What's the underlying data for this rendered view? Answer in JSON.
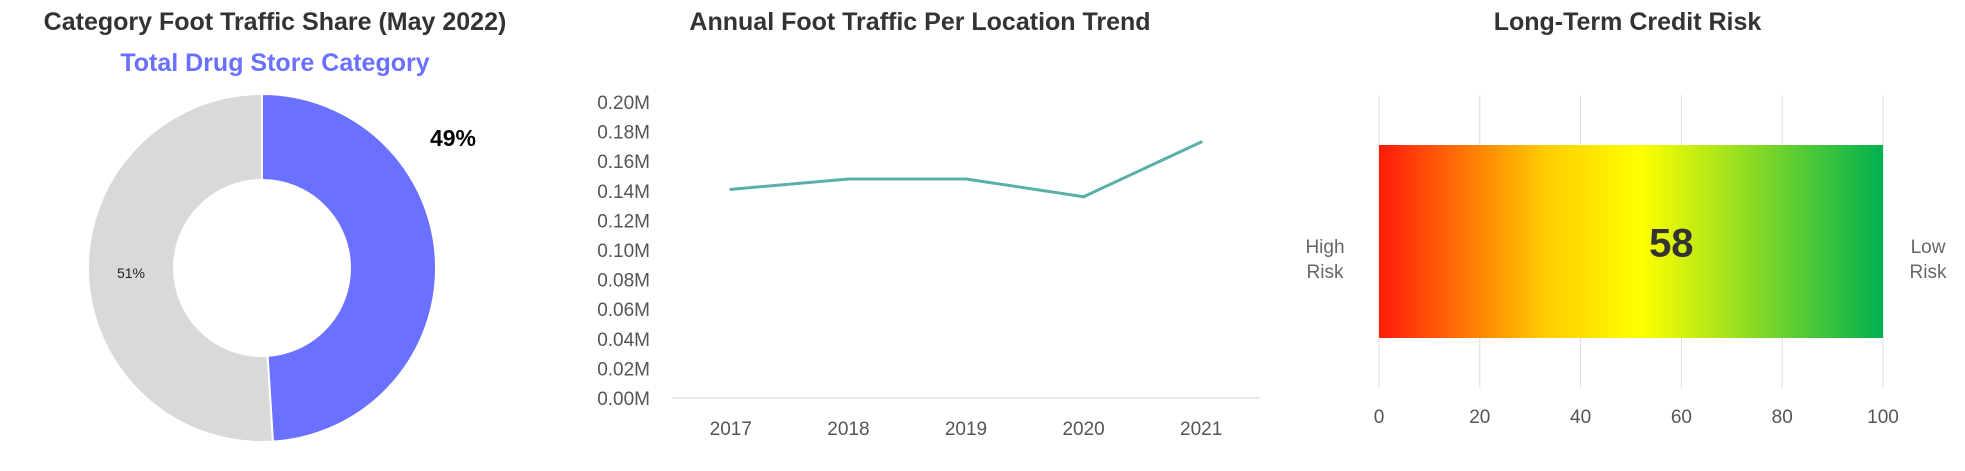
{
  "chart_data": [
    {
      "type": "pie",
      "title": "Category Foot Traffic Share (May 2022)",
      "subtitle": "Total Drug Store Category",
      "slices": [
        {
          "label": "49%",
          "value": 49,
          "color": "#6a70ff"
        },
        {
          "label": "51%",
          "value": 51,
          "color": "#d9d9d9"
        }
      ]
    },
    {
      "type": "line",
      "title": "Annual Foot Traffic Per Location Trend",
      "x": [
        "2017",
        "2018",
        "2019",
        "2020",
        "2021"
      ],
      "series": [
        {
          "values": [
            141000,
            148000,
            148000,
            136000,
            173000
          ],
          "color": "#5aafa6"
        }
      ],
      "ylim": [
        0,
        200000
      ],
      "yticks": [
        "0.00M",
        "0.02M",
        "0.04M",
        "0.06M",
        "0.08M",
        "0.10M",
        "0.12M",
        "0.14M",
        "0.16M",
        "0.18M",
        "0.20M"
      ],
      "grid": false
    },
    {
      "type": "bar",
      "title": "Long-Term Credit Risk",
      "value": 58,
      "value_label": "58",
      "xlim": [
        0,
        100
      ],
      "xticks": [
        "0",
        "20",
        "40",
        "60",
        "80",
        "100"
      ],
      "left_label": [
        "High",
        "Risk"
      ],
      "right_label": [
        "Low",
        "Risk"
      ],
      "gradient": [
        "#ff1a0a",
        "#ffcc00",
        "#ffff00",
        "#00b050"
      ],
      "grid": true
    }
  ]
}
